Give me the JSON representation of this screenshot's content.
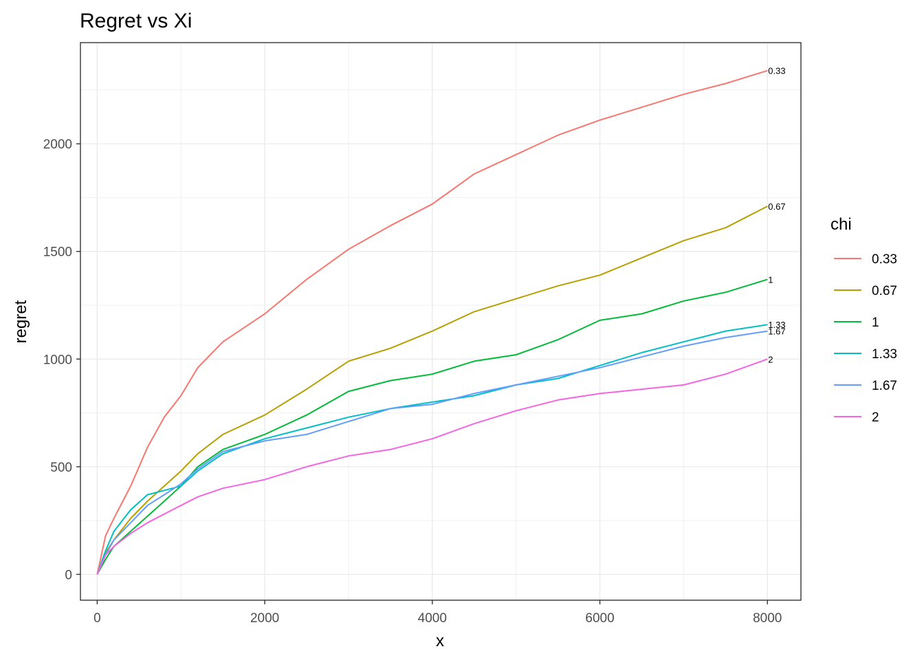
{
  "chart_data": {
    "type": "line",
    "title": "Regret vs Xi",
    "xlabel": "x",
    "ylabel": "regret",
    "xlim": [
      -200,
      8400
    ],
    "ylim": [
      -120,
      2470
    ],
    "x_ticks": [
      0,
      2000,
      4000,
      6000,
      8000
    ],
    "y_ticks": [
      0,
      500,
      1000,
      1500,
      2000
    ],
    "grid": true,
    "legend": {
      "title": "chi",
      "position": "right"
    },
    "series": [
      {
        "name": "0.33",
        "color": "#F8766D",
        "end_label": "0.33",
        "x": [
          0,
          100,
          200,
          400,
          600,
          800,
          1000,
          1200,
          1500,
          2000,
          2500,
          3000,
          3500,
          4000,
          4500,
          5000,
          5500,
          6000,
          6500,
          7000,
          7500,
          8000
        ],
        "y": [
          0,
          180,
          260,
          410,
          590,
          730,
          830,
          960,
          1080,
          1210,
          1370,
          1510,
          1620,
          1720,
          1860,
          1950,
          2040,
          2110,
          2170,
          2230,
          2280,
          2340
        ]
      },
      {
        "name": "0.67",
        "color": "#B79F00",
        "end_label": "0.67",
        "x": [
          0,
          100,
          200,
          400,
          600,
          800,
          1000,
          1200,
          1500,
          2000,
          2500,
          3000,
          3500,
          4000,
          4500,
          5000,
          5500,
          6000,
          6500,
          7000,
          7500,
          8000
        ],
        "y": [
          0,
          100,
          160,
          260,
          340,
          410,
          480,
          560,
          650,
          740,
          860,
          990,
          1050,
          1130,
          1220,
          1280,
          1340,
          1390,
          1470,
          1550,
          1610,
          1710
        ]
      },
      {
        "name": "1",
        "color": "#00BA38",
        "end_label": "1",
        "x": [
          0,
          100,
          200,
          400,
          600,
          800,
          1000,
          1200,
          1500,
          2000,
          2500,
          3000,
          3500,
          4000,
          4500,
          5000,
          5500,
          6000,
          6500,
          7000,
          7500,
          8000
        ],
        "y": [
          0,
          70,
          130,
          200,
          270,
          340,
          410,
          500,
          580,
          650,
          740,
          850,
          900,
          930,
          990,
          1020,
          1090,
          1180,
          1210,
          1270,
          1310,
          1370
        ]
      },
      {
        "name": "1.33",
        "color": "#00BFC4",
        "end_label": "1.33",
        "x": [
          0,
          100,
          200,
          400,
          600,
          800,
          1000,
          1200,
          1500,
          2000,
          2500,
          3000,
          3500,
          4000,
          4500,
          5000,
          5500,
          6000,
          6500,
          7000,
          7500,
          8000
        ],
        "y": [
          0,
          110,
          200,
          300,
          370,
          390,
          410,
          480,
          560,
          630,
          680,
          730,
          770,
          800,
          830,
          880,
          910,
          970,
          1030,
          1080,
          1130,
          1160
        ]
      },
      {
        "name": "1.67",
        "color": "#619CFF",
        "end_label": "1.67",
        "x": [
          0,
          100,
          200,
          400,
          600,
          800,
          1000,
          1200,
          1500,
          2000,
          2500,
          3000,
          3500,
          4000,
          4500,
          5000,
          5500,
          6000,
          6500,
          7000,
          7500,
          8000
        ],
        "y": [
          0,
          90,
          160,
          240,
          320,
          370,
          420,
          490,
          570,
          620,
          650,
          710,
          770,
          790,
          840,
          880,
          920,
          960,
          1010,
          1060,
          1100,
          1130
        ]
      },
      {
        "name": "2",
        "color": "#F564E3",
        "end_label": "2",
        "x": [
          0,
          100,
          200,
          400,
          600,
          800,
          1000,
          1200,
          1500,
          2000,
          2500,
          3000,
          3500,
          4000,
          4500,
          5000,
          5500,
          6000,
          6500,
          7000,
          7500,
          8000
        ],
        "y": [
          0,
          90,
          130,
          190,
          240,
          280,
          320,
          360,
          400,
          440,
          500,
          550,
          580,
          630,
          700,
          760,
          810,
          840,
          860,
          880,
          930,
          1000
        ]
      }
    ]
  }
}
